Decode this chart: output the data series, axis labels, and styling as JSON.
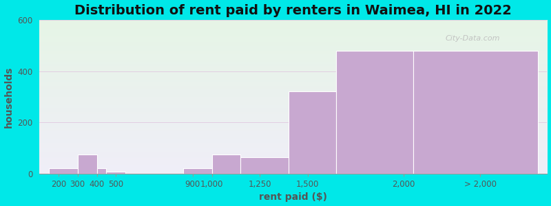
{
  "title": "Distribution of rent paid by renters in Waimea, HI in 2022",
  "xlabel": "rent paid ($)",
  "ylabel": "households",
  "bar_lefts": [
    150,
    300,
    400,
    450,
    850,
    1000,
    1150,
    1400,
    1650,
    2050
  ],
  "bar_rights": [
    300,
    400,
    450,
    550,
    1000,
    1150,
    1400,
    1650,
    2050,
    2700
  ],
  "bar_heights": [
    20,
    75,
    20,
    8,
    20,
    75,
    65,
    320,
    480,
    480
  ],
  "bar_color": "#c8a8d0",
  "bar_edge_color": "#ffffff",
  "ylim": [
    0,
    600
  ],
  "yticks": [
    0,
    200,
    400,
    600
  ],
  "xlim": [
    100,
    2750
  ],
  "background_color": "#00e8e8",
  "plot_bg_top": "#e6f5e6",
  "plot_bg_bottom": "#f0eef8",
  "title_fontsize": 14,
  "axis_label_fontsize": 10,
  "tick_label_fontsize": 8.5,
  "tick_label_color": "#555555",
  "watermark_text": "City-Data.com",
  "xtick_positions": [
    200,
    300,
    400,
    500,
    900,
    1000,
    1250,
    1500,
    2000,
    2400
  ],
  "xtick_labels": [
    "200",
    "300",
    "400",
    "500",
    "900",
    "1,000",
    "1,250",
    "1,500",
    "2,000",
    "> 2,000"
  ]
}
